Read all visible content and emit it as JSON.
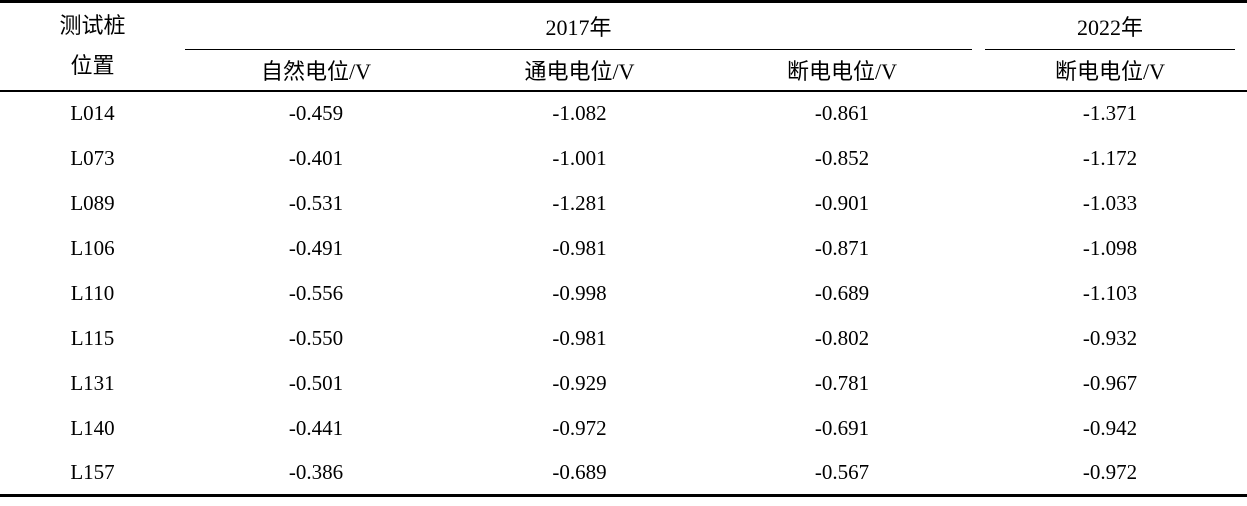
{
  "table": {
    "pile_header_line1": "测试桩",
    "pile_header_line2": "位置",
    "group_2017_label": "2017年",
    "group_2022_label": "2022年",
    "subheaders_2017": [
      "自然电位/V",
      "通电电位/V",
      "断电电位/V"
    ],
    "subheader_2022": "断电电位/V",
    "rows": [
      {
        "pile": "L014",
        "natural_potential": "-0.459",
        "on_potential": "-1.082",
        "off_potential_2017": "-0.861",
        "off_potential_2022": "-1.371"
      },
      {
        "pile": "L073",
        "natural_potential": "-0.401",
        "on_potential": "-1.001",
        "off_potential_2017": "-0.852",
        "off_potential_2022": "-1.172"
      },
      {
        "pile": "L089",
        "natural_potential": "-0.531",
        "on_potential": "-1.281",
        "off_potential_2017": "-0.901",
        "off_potential_2022": "-1.033"
      },
      {
        "pile": "L106",
        "natural_potential": "-0.491",
        "on_potential": "-0.981",
        "off_potential_2017": "-0.871",
        "off_potential_2022": "-1.098"
      },
      {
        "pile": "L110",
        "natural_potential": "-0.556",
        "on_potential": "-0.998",
        "off_potential_2017": "-0.689",
        "off_potential_2022": "-1.103"
      },
      {
        "pile": "L115",
        "natural_potential": "-0.550",
        "on_potential": "-0.981",
        "off_potential_2017": "-0.802",
        "off_potential_2022": "-0.932"
      },
      {
        "pile": "L131",
        "natural_potential": "-0.501",
        "on_potential": "-0.929",
        "off_potential_2017": "-0.781",
        "off_potential_2022": "-0.967"
      },
      {
        "pile": "L140",
        "natural_potential": "-0.441",
        "on_potential": "-0.972",
        "off_potential_2017": "-0.691",
        "off_potential_2022": "-0.942"
      },
      {
        "pile": "L157",
        "natural_potential": "-0.386",
        "on_potential": "-0.689",
        "off_potential_2017": "-0.567",
        "off_potential_2022": "-0.972"
      }
    ],
    "colors": {
      "text": "#000000",
      "background": "#ffffff",
      "rule": "#000000"
    }
  },
  "chart_data": {
    "type": "table",
    "columns": [
      "测试桩位置",
      "2017年 自然电位/V",
      "2017年 通电电位/V",
      "2017年 断电电位/V",
      "2022年 断电电位/V"
    ],
    "rows": [
      [
        "L014",
        -0.459,
        -1.082,
        -0.861,
        -1.371
      ],
      [
        "L073",
        -0.401,
        -1.001,
        -0.852,
        -1.172
      ],
      [
        "L089",
        -0.531,
        -1.281,
        -0.901,
        -1.033
      ],
      [
        "L106",
        -0.491,
        -0.981,
        -0.871,
        -1.098
      ],
      [
        "L110",
        -0.556,
        -0.998,
        -0.689,
        -1.103
      ],
      [
        "L115",
        -0.55,
        -0.981,
        -0.802,
        -0.932
      ],
      [
        "L131",
        -0.501,
        -0.929,
        -0.781,
        -0.967
      ],
      [
        "L140",
        -0.441,
        -0.972,
        -0.691,
        -0.942
      ],
      [
        "L157",
        -0.386,
        -0.689,
        -0.567,
        -0.972
      ]
    ]
  }
}
